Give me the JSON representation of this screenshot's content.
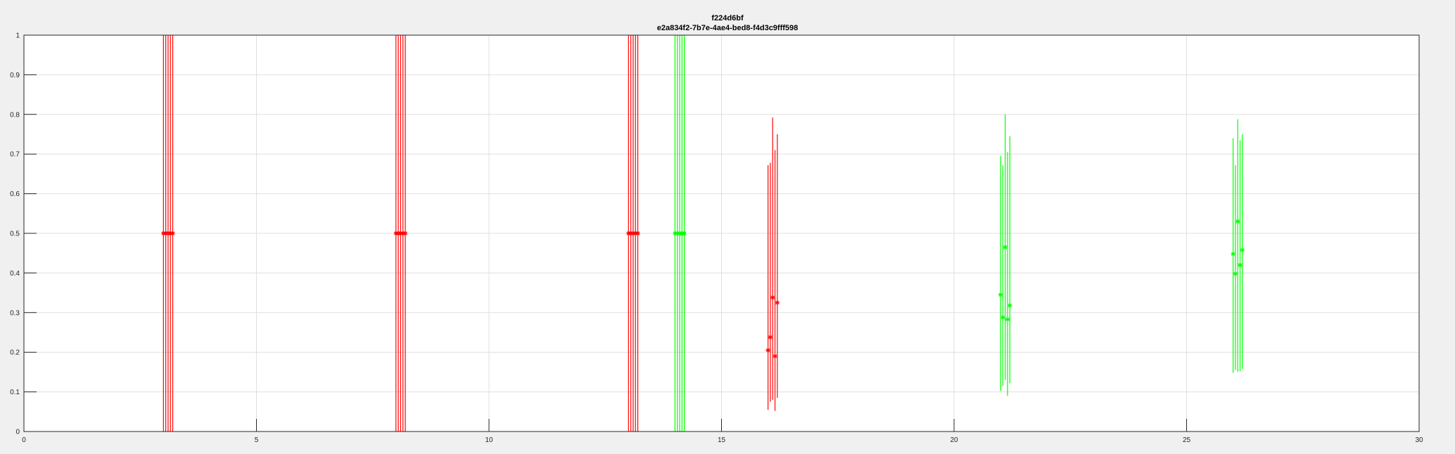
{
  "chart_data": {
    "type": "scatter",
    "title": "f224d6bf",
    "subtitle": "e2a834f2-7b7e-4ae4-bed8-f4d3c9fff598",
    "xlabel": "",
    "ylabel": "",
    "xlim": [
      0,
      30
    ],
    "ylim": [
      0,
      1
    ],
    "grid": true,
    "x_ticks": [
      "0",
      "5",
      "10",
      "15",
      "20",
      "25",
      "30"
    ],
    "y_ticks": [
      "0",
      "0.1",
      "0.2",
      "0.3",
      "0.4",
      "0.5",
      "0.6",
      "0.7",
      "0.8",
      "0.9",
      "1"
    ],
    "series": [
      {
        "color": "#ff0000",
        "points": [
          {
            "x": 3.0,
            "y": 0.5,
            "low": 0,
            "high": 1
          },
          {
            "x": 3.05,
            "y": 0.5,
            "low": 0,
            "high": 1
          },
          {
            "x": 3.1,
            "y": 0.5,
            "low": 0,
            "high": 1
          },
          {
            "x": 3.15,
            "y": 0.5,
            "low": 0,
            "high": 1
          },
          {
            "x": 3.2,
            "y": 0.5,
            "low": 0,
            "high": 1
          },
          {
            "x": 8.0,
            "y": 0.5,
            "low": 0,
            "high": 1
          },
          {
            "x": 8.05,
            "y": 0.5,
            "low": 0,
            "high": 1
          },
          {
            "x": 8.1,
            "y": 0.5,
            "low": 0,
            "high": 1
          },
          {
            "x": 8.15,
            "y": 0.5,
            "low": 0,
            "high": 1
          },
          {
            "x": 8.2,
            "y": 0.5,
            "low": 0,
            "high": 1
          },
          {
            "x": 13.0,
            "y": 0.5,
            "low": 0,
            "high": 1
          },
          {
            "x": 13.05,
            "y": 0.5,
            "low": 0,
            "high": 1
          },
          {
            "x": 13.1,
            "y": 0.5,
            "low": 0,
            "high": 1
          },
          {
            "x": 13.15,
            "y": 0.5,
            "low": 0,
            "high": 1
          },
          {
            "x": 13.2,
            "y": 0.5,
            "low": 0,
            "high": 1
          },
          {
            "x": 16.0,
            "y": 0.205,
            "low": 0.055,
            "high": 0.672
          },
          {
            "x": 16.05,
            "y": 0.238,
            "low": 0.075,
            "high": 0.678
          },
          {
            "x": 16.1,
            "y": 0.338,
            "low": 0.08,
            "high": 0.792
          },
          {
            "x": 16.15,
            "y": 0.19,
            "low": 0.052,
            "high": 0.71
          },
          {
            "x": 16.2,
            "y": 0.325,
            "low": 0.085,
            "high": 0.75
          }
        ]
      },
      {
        "color": "#00ff00",
        "points": [
          {
            "x": 14.0,
            "y": 0.5,
            "low": 0,
            "high": 1
          },
          {
            "x": 14.05,
            "y": 0.5,
            "low": 0,
            "high": 1
          },
          {
            "x": 14.1,
            "y": 0.5,
            "low": 0,
            "high": 1
          },
          {
            "x": 14.15,
            "y": 0.5,
            "low": 0,
            "high": 1
          },
          {
            "x": 14.2,
            "y": 0.5,
            "low": 0,
            "high": 1
          },
          {
            "x": 21.0,
            "y": 0.345,
            "low": 0.102,
            "high": 0.695
          },
          {
            "x": 21.05,
            "y": 0.288,
            "low": 0.115,
            "high": 0.672
          },
          {
            "x": 21.1,
            "y": 0.465,
            "low": 0.13,
            "high": 0.8
          },
          {
            "x": 21.15,
            "y": 0.283,
            "low": 0.09,
            "high": 0.705
          },
          {
            "x": 21.2,
            "y": 0.318,
            "low": 0.122,
            "high": 0.745
          },
          {
            "x": 26.0,
            "y": 0.448,
            "low": 0.148,
            "high": 0.74
          },
          {
            "x": 26.05,
            "y": 0.398,
            "low": 0.155,
            "high": 0.672
          },
          {
            "x": 26.1,
            "y": 0.53,
            "low": 0.15,
            "high": 0.788
          },
          {
            "x": 26.15,
            "y": 0.42,
            "low": 0.152,
            "high": 0.735
          },
          {
            "x": 26.2,
            "y": 0.458,
            "low": 0.158,
            "high": 0.75
          }
        ]
      }
    ]
  }
}
